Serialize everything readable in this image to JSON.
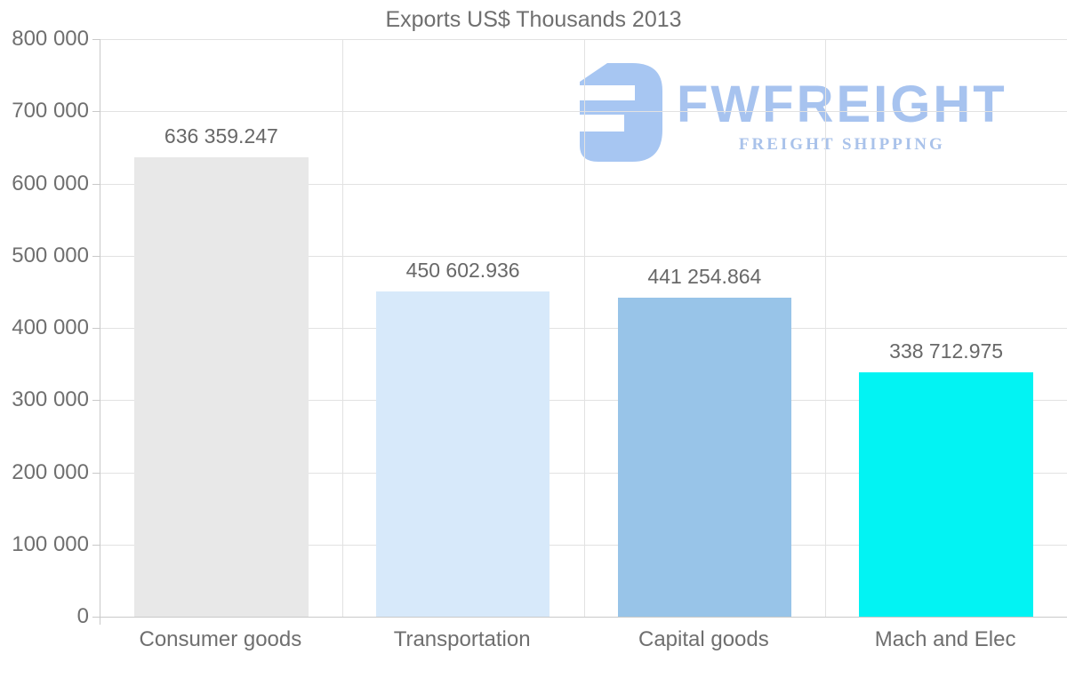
{
  "title": "Exports US$ Thousands 2013",
  "watermark": {
    "brand": "FWFREIGHT",
    "tagline": "FREIGHT SHIPPING",
    "brand_color": "#a7c3ef",
    "tagline_color": "#a9c2ea",
    "icon_color": "#a7c6f2"
  },
  "chart_data": {
    "type": "bar",
    "title": "Exports US$ Thousands 2013",
    "categories": [
      "Consumer goods",
      "Transportation",
      "Capital goods",
      "Mach and Elec"
    ],
    "values": [
      636359.247,
      450602.936,
      441254.864,
      338712.975
    ],
    "value_labels": [
      "636 359.247",
      "450 602.936",
      "441 254.864",
      "338 712.975"
    ],
    "bar_colors": [
      "#e8e8e8",
      "#d7e9fa",
      "#98c4e8",
      "#02f3f3"
    ],
    "xlabel": "",
    "ylabel": "",
    "ylim": [
      0,
      800000
    ],
    "ytick_interval": 100000,
    "ytick_labels": [
      "0",
      "100 000",
      "200 000",
      "300 000",
      "400 000",
      "500 000",
      "600 000",
      "700 000",
      "800 000"
    ],
    "grid": true,
    "legend": false,
    "text_color": "#6f6f6f",
    "grid_color": "#e2e2e2",
    "axis_color": "#c9c9c9"
  }
}
